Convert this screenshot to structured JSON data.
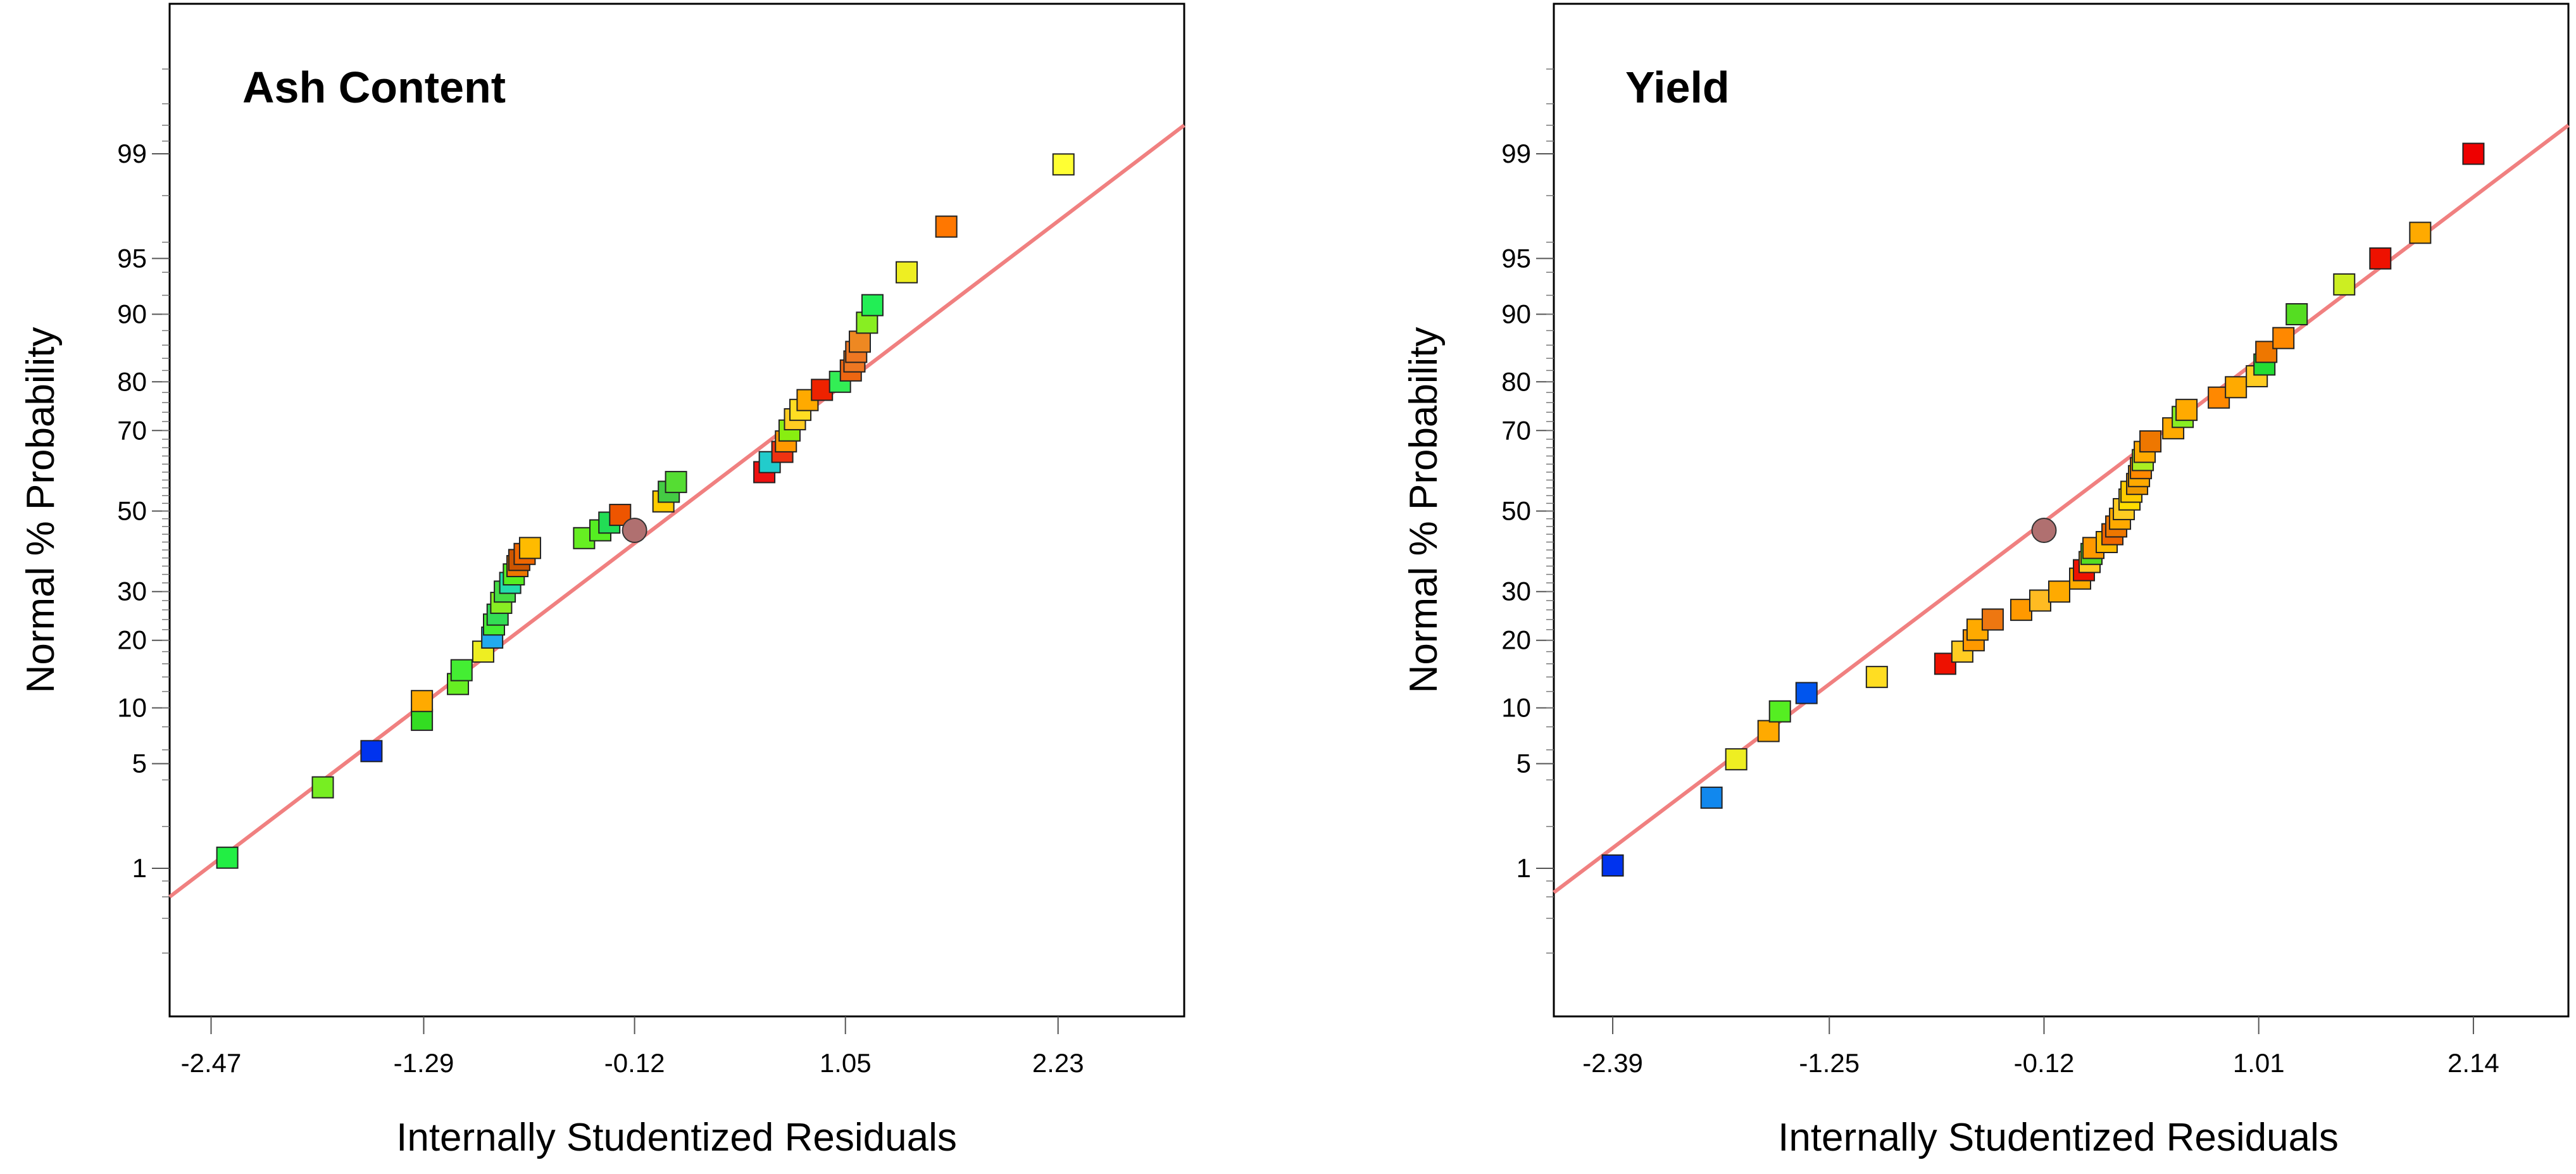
{
  "chart_data": [
    {
      "type": "scatter",
      "title": "Ash Content",
      "xlabel": "Internally Studentized Residuals",
      "ylabel": "Normal % Probability",
      "xlim": [
        -2.7,
        2.93
      ],
      "x_ticks": [
        -2.47,
        -1.29,
        -0.12,
        1.05,
        2.23
      ],
      "x_tick_labels": [
        "-2.47",
        "-1.29",
        "-0.12",
        "1.05",
        "2.23"
      ],
      "y_ticks": [
        1,
        5,
        10,
        20,
        30,
        50,
        70,
        80,
        90,
        95,
        99
      ],
      "y_tick_labels": [
        "1",
        "5",
        "10",
        "20",
        "30",
        "50",
        "70",
        "80",
        "90",
        "95",
        "99"
      ],
      "fit_line": {
        "x": [
          -2.7,
          2.93
        ],
        "y": [
          0.6,
          99.4
        ],
        "color": "#f08080"
      },
      "reference_point": {
        "x": -0.12,
        "y": 45,
        "color": "#b07070"
      },
      "points": [
        {
          "x": -2.38,
          "y": 1.2,
          "color": "#22ee44"
        },
        {
          "x": -1.85,
          "y": 3.6,
          "color": "#77ee22"
        },
        {
          "x": -1.58,
          "y": 5.9,
          "color": "#0033ee"
        },
        {
          "x": -1.3,
          "y": 8.7,
          "color": "#33dd22"
        },
        {
          "x": -1.3,
          "y": 10.8,
          "color": "#ffaa00"
        },
        {
          "x": -1.1,
          "y": 13.0,
          "color": "#66ee22"
        },
        {
          "x": -1.08,
          "y": 15.0,
          "color": "#44ee33"
        },
        {
          "x": -0.96,
          "y": 18.0,
          "color": "#eeee22"
        },
        {
          "x": -0.91,
          "y": 20.5,
          "color": "#22aaee"
        },
        {
          "x": -0.9,
          "y": 23.0,
          "color": "#44ee33"
        },
        {
          "x": -0.88,
          "y": 25.0,
          "color": "#33dd55"
        },
        {
          "x": -0.86,
          "y": 27.5,
          "color": "#88ee22"
        },
        {
          "x": -0.84,
          "y": 30.0,
          "color": "#44dd44"
        },
        {
          "x": -0.81,
          "y": 32.0,
          "color": "#22ddaa"
        },
        {
          "x": -0.79,
          "y": 34.0,
          "color": "#55ee22"
        },
        {
          "x": -0.77,
          "y": 36.0,
          "color": "#ee7700"
        },
        {
          "x": -0.76,
          "y": 37.5,
          "color": "#cc5500"
        },
        {
          "x": -0.73,
          "y": 39.0,
          "color": "#ee6600"
        },
        {
          "x": -0.7,
          "y": 40.5,
          "color": "#ffbb00"
        },
        {
          "x": -0.4,
          "y": 43.0,
          "color": "#66ee22"
        },
        {
          "x": -0.31,
          "y": 45.0,
          "color": "#55ee22"
        },
        {
          "x": -0.26,
          "y": 47.0,
          "color": "#22dd55"
        },
        {
          "x": -0.2,
          "y": 49.0,
          "color": "#ee5500"
        },
        {
          "x": 0.04,
          "y": 52.5,
          "color": "#ffcc00"
        },
        {
          "x": 0.07,
          "y": 55.0,
          "color": "#44cc44"
        },
        {
          "x": 0.11,
          "y": 57.5,
          "color": "#55dd33"
        },
        {
          "x": 0.6,
          "y": 60.0,
          "color": "#ee1111"
        },
        {
          "x": 0.63,
          "y": 62.5,
          "color": "#22cccc"
        },
        {
          "x": 0.7,
          "y": 65.0,
          "color": "#ee3311"
        },
        {
          "x": 0.72,
          "y": 67.5,
          "color": "#ff9900"
        },
        {
          "x": 0.74,
          "y": 70.0,
          "color": "#88ee11"
        },
        {
          "x": 0.77,
          "y": 72.5,
          "color": "#ffcc22"
        },
        {
          "x": 0.8,
          "y": 74.5,
          "color": "#ffdd22"
        },
        {
          "x": 0.84,
          "y": 76.5,
          "color": "#ffaa00"
        },
        {
          "x": 0.92,
          "y": 78.5,
          "color": "#ee2200"
        },
        {
          "x": 1.02,
          "y": 80.0,
          "color": "#33ee55"
        },
        {
          "x": 1.08,
          "y": 82.0,
          "color": "#ee6611"
        },
        {
          "x": 1.1,
          "y": 83.5,
          "color": "#ee7722"
        },
        {
          "x": 1.11,
          "y": 85.0,
          "color": "#ee7722"
        },
        {
          "x": 1.13,
          "y": 86.5,
          "color": "#ee8822"
        },
        {
          "x": 1.17,
          "y": 89.0,
          "color": "#88ee22"
        },
        {
          "x": 1.2,
          "y": 91.0,
          "color": "#22ee55"
        },
        {
          "x": 1.39,
          "y": 94.0,
          "color": "#eeee22"
        },
        {
          "x": 1.61,
          "y": 96.8,
          "color": "#ff7700"
        },
        {
          "x": 2.26,
          "y": 98.8,
          "color": "#ffff33"
        }
      ]
    },
    {
      "type": "scatter",
      "title": "Yield",
      "xlabel": "Internally Studentized Residuals",
      "ylabel": "Normal % Probability",
      "xlim": [
        -2.7,
        2.64
      ],
      "x_ticks": [
        -2.39,
        -1.25,
        -0.12,
        1.01,
        2.14
      ],
      "x_tick_labels": [
        "-2.39",
        "-1.25",
        "-0.12",
        "1.01",
        "2.14"
      ],
      "y_ticks": [
        1,
        5,
        10,
        20,
        30,
        50,
        70,
        80,
        90,
        95,
        99
      ],
      "y_tick_labels": [
        "1",
        "5",
        "10",
        "20",
        "30",
        "50",
        "70",
        "80",
        "90",
        "95",
        "99"
      ],
      "fit_line": {
        "x": [
          -2.7,
          2.64
        ],
        "y": [
          0.65,
          99.4
        ],
        "color": "#f08080"
      },
      "reference_point": {
        "x": -0.12,
        "y": 45,
        "color": "#b07070"
      },
      "points": [
        {
          "x": -2.39,
          "y": 1.05,
          "color": "#0033ee"
        },
        {
          "x": -1.87,
          "y": 3.1,
          "color": "#1188ee"
        },
        {
          "x": -1.74,
          "y": 5.3,
          "color": "#eeee22"
        },
        {
          "x": -1.57,
          "y": 7.6,
          "color": "#ffaa00"
        },
        {
          "x": -1.51,
          "y": 9.6,
          "color": "#55ee22"
        },
        {
          "x": -1.37,
          "y": 11.8,
          "color": "#0055ee"
        },
        {
          "x": -1.0,
          "y": 14.0,
          "color": "#ffdd22"
        },
        {
          "x": -0.64,
          "y": 16.0,
          "color": "#ee1100"
        },
        {
          "x": -0.55,
          "y": 18.0,
          "color": "#ffcc22"
        },
        {
          "x": -0.49,
          "y": 20.0,
          "color": "#ff9900"
        },
        {
          "x": -0.47,
          "y": 22.0,
          "color": "#ffaa00"
        },
        {
          "x": -0.39,
          "y": 24.0,
          "color": "#ee7711"
        },
        {
          "x": -0.24,
          "y": 26.0,
          "color": "#ff9900"
        },
        {
          "x": -0.14,
          "y": 28.0,
          "color": "#ffbb22"
        },
        {
          "x": -0.04,
          "y": 30.0,
          "color": "#ffaa00"
        },
        {
          "x": 0.07,
          "y": 33.0,
          "color": "#ffaa00"
        },
        {
          "x": 0.09,
          "y": 35.0,
          "color": "#ee1100"
        },
        {
          "x": 0.12,
          "y": 37.0,
          "color": "#ffcc22"
        },
        {
          "x": 0.13,
          "y": 39.0,
          "color": "#55dd22"
        },
        {
          "x": 0.14,
          "y": 40.5,
          "color": "#ff9900"
        },
        {
          "x": 0.21,
          "y": 42.0,
          "color": "#ffbb00"
        },
        {
          "x": 0.24,
          "y": 44.0,
          "color": "#ee6600"
        },
        {
          "x": 0.26,
          "y": 46.0,
          "color": "#ee7700"
        },
        {
          "x": 0.28,
          "y": 48.0,
          "color": "#ffaa00"
        },
        {
          "x": 0.3,
          "y": 50.5,
          "color": "#ffcc22"
        },
        {
          "x": 0.33,
          "y": 53.0,
          "color": "#ffdd00"
        },
        {
          "x": 0.34,
          "y": 55.0,
          "color": "#ffcc00"
        },
        {
          "x": 0.37,
          "y": 57.0,
          "color": "#ee9900"
        },
        {
          "x": 0.38,
          "y": 59.0,
          "color": "#ffaa00"
        },
        {
          "x": 0.39,
          "y": 61.0,
          "color": "#ff8800"
        },
        {
          "x": 0.4,
          "y": 63.0,
          "color": "#aaee22"
        },
        {
          "x": 0.41,
          "y": 65.0,
          "color": "#ffaa00"
        },
        {
          "x": 0.44,
          "y": 67.5,
          "color": "#ee7700"
        },
        {
          "x": 0.56,
          "y": 70.5,
          "color": "#ffaa00"
        },
        {
          "x": 0.61,
          "y": 73.0,
          "color": "#88ee22"
        },
        {
          "x": 0.63,
          "y": 74.5,
          "color": "#ffaa00"
        },
        {
          "x": 0.8,
          "y": 77.0,
          "color": "#ff8800"
        },
        {
          "x": 0.89,
          "y": 79.0,
          "color": "#ffaa00"
        },
        {
          "x": 1.0,
          "y": 81.0,
          "color": "#ffcc22"
        },
        {
          "x": 1.04,
          "y": 83.0,
          "color": "#22dd33"
        },
        {
          "x": 1.05,
          "y": 85.0,
          "color": "#ee7700"
        },
        {
          "x": 1.14,
          "y": 87.0,
          "color": "#ff8800"
        },
        {
          "x": 1.21,
          "y": 90.0,
          "color": "#55dd22"
        },
        {
          "x": 1.46,
          "y": 93.0,
          "color": "#ccee22"
        },
        {
          "x": 1.65,
          "y": 95.0,
          "color": "#ee1100"
        },
        {
          "x": 1.86,
          "y": 96.5,
          "color": "#ffaa00"
        },
        {
          "x": 2.14,
          "y": 99.0,
          "color": "#ee0000"
        }
      ]
    }
  ]
}
